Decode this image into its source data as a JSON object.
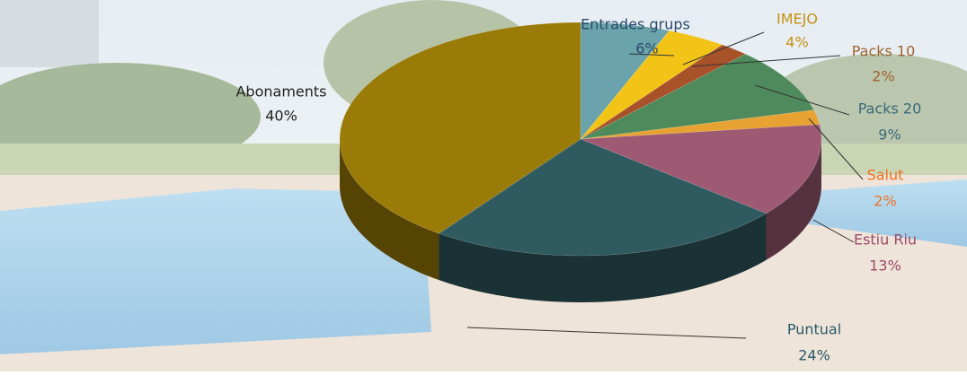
{
  "chart_data": {
    "type": "pie",
    "categories": [
      "Entrades grups",
      "IMEJO",
      "Packs 10",
      "Packs 20",
      "Salut",
      "Estiu Riu",
      "Puntual",
      "Abonaments"
    ],
    "values": [
      6,
      4,
      2,
      9,
      2,
      13,
      24,
      40
    ],
    "value_labels": [
      "6%",
      "4%",
      "2%",
      "9%",
      "2%",
      "13%",
      "24%",
      "40%"
    ],
    "colors": [
      "#6aa3ab",
      "#f2c418",
      "#a8522a",
      "#4f8a5c",
      "#e8a232",
      "#9d5a72",
      "#2f5a60",
      "#9b7b08"
    ],
    "label_colors": [
      "#2b4a6a",
      "#c89010",
      "#a0622d",
      "#3a6a7a",
      "#f07020",
      "#9c4a6a",
      "#2a5a6a",
      "#222222"
    ]
  }
}
